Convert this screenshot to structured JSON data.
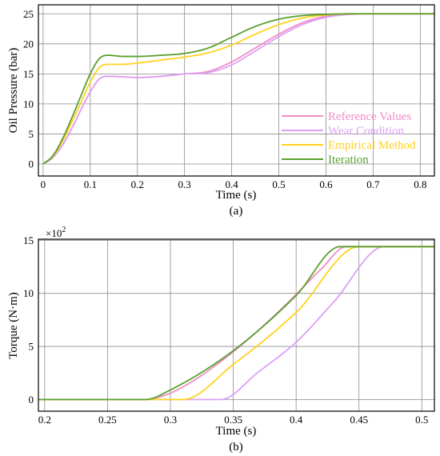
{
  "colors": {
    "reference": "#f08cc8",
    "wear": "#dca0f5",
    "empirical": "#ffd21e",
    "iteration": "#5aa02d"
  },
  "chart_data": [
    {
      "type": "line",
      "caption": "(a)",
      "xlabel": "Time (s)",
      "ylabel": "Oil Pressure (bar)",
      "xlim": [
        -0.01,
        0.83
      ],
      "ylim": [
        -2,
        26.5
      ],
      "xticks": [
        0,
        0.1,
        0.2,
        0.3,
        0.4,
        0.5,
        0.6,
        0.7,
        0.8
      ],
      "xtick_labels": [
        "0",
        "0.1",
        "0.2",
        "0.3",
        "0.4",
        "0.5",
        "0.6",
        "0.7",
        "0.8"
      ],
      "yticks": [
        0,
        5,
        10,
        15,
        20,
        25
      ],
      "ytick_labels": [
        "0",
        "5",
        "10",
        "15",
        "20",
        "25"
      ],
      "grid": true,
      "legend_position": "bottom-right",
      "series": [
        {
          "name": "Reference Values",
          "color_key": "reference",
          "x": [
            0,
            0.02,
            0.04,
            0.06,
            0.08,
            0.1,
            0.12,
            0.14,
            0.17,
            0.2,
            0.25,
            0.3,
            0.35,
            0.4,
            0.45,
            0.5,
            0.55,
            0.6,
            0.65,
            0.7,
            0.75,
            0.8,
            0.83
          ],
          "y": [
            0,
            1,
            3,
            5.8,
            9,
            12,
            14.2,
            14.6,
            14.5,
            14.4,
            14.6,
            15,
            15.4,
            17,
            19.3,
            21.6,
            23.5,
            24.6,
            24.9,
            25,
            25,
            25,
            25
          ]
        },
        {
          "name": "Wear Condition",
          "color_key": "wear",
          "x": [
            0,
            0.02,
            0.04,
            0.06,
            0.08,
            0.1,
            0.12,
            0.14,
            0.17,
            0.2,
            0.25,
            0.3,
            0.35,
            0.4,
            0.45,
            0.5,
            0.55,
            0.6,
            0.65,
            0.7,
            0.75,
            0.8,
            0.83
          ],
          "y": [
            0,
            1,
            3,
            5.8,
            9,
            12,
            14.2,
            14.6,
            14.5,
            14.4,
            14.6,
            15,
            15.2,
            16.5,
            18.8,
            21.2,
            23.2,
            24.4,
            24.9,
            25,
            25,
            25,
            25
          ]
        },
        {
          "name": "Empirical Method",
          "color_key": "empirical",
          "x": [
            0,
            0.02,
            0.04,
            0.06,
            0.08,
            0.1,
            0.12,
            0.14,
            0.17,
            0.2,
            0.25,
            0.3,
            0.35,
            0.4,
            0.45,
            0.5,
            0.55,
            0.6,
            0.65,
            0.7,
            0.75,
            0.8,
            0.83
          ],
          "y": [
            0,
            1.2,
            3.6,
            6.8,
            10.2,
            13.6,
            16.1,
            16.6,
            16.6,
            16.8,
            17.3,
            17.8,
            18.5,
            19.8,
            21.6,
            23.2,
            24.3,
            24.8,
            25,
            25,
            25,
            25,
            25
          ]
        },
        {
          "name": "Iteration",
          "color_key": "iteration",
          "x": [
            0,
            0.02,
            0.04,
            0.06,
            0.08,
            0.1,
            0.12,
            0.14,
            0.17,
            0.2,
            0.25,
            0.3,
            0.35,
            0.4,
            0.45,
            0.5,
            0.55,
            0.6,
            0.65,
            0.7,
            0.75,
            0.8,
            0.83
          ],
          "y": [
            0,
            1.3,
            4,
            7.5,
            11.3,
            15,
            17.6,
            18.1,
            17.9,
            17.9,
            18.1,
            18.4,
            19.3,
            21.1,
            22.9,
            24.1,
            24.7,
            24.9,
            25,
            25,
            25,
            25,
            25
          ]
        }
      ]
    },
    {
      "type": "line",
      "caption": "(b)",
      "xlabel": "Time (s)",
      "ylabel": "Torque (N·m)",
      "y_multiplier": "×10",
      "y_multiplier_exp": "2",
      "xlim": [
        0.195,
        0.51
      ],
      "ylim": [
        -1.1,
        15.1
      ],
      "xticks": [
        0.2,
        0.25,
        0.3,
        0.35,
        0.4,
        0.45,
        0.5
      ],
      "xtick_labels": [
        "0.2",
        "0.25",
        "0.3",
        "0.35",
        "0.4",
        "0.45",
        "0.5"
      ],
      "yticks": [
        0,
        5,
        10,
        15
      ],
      "ytick_labels": [
        "0",
        "5",
        "10",
        "15"
      ],
      "grid": true,
      "series": [
        {
          "name": "Reference Values",
          "color_key": "reference",
          "x": [
            0.195,
            0.28,
            0.29,
            0.3,
            0.32,
            0.35,
            0.38,
            0.4,
            0.42,
            0.44,
            0.51
          ],
          "y": [
            0,
            0,
            0.2,
            0.6,
            1.9,
            4.5,
            7.6,
            9.9,
            12.3,
            14.4,
            14.4
          ]
        },
        {
          "name": "Wear Condition",
          "color_key": "wear",
          "x": [
            0.195,
            0.34,
            0.37,
            0.4,
            0.43,
            0.47,
            0.51
          ],
          "y": [
            0,
            0,
            2.6,
            5.4,
            9.2,
            14.4,
            14.4
          ]
        },
        {
          "name": "Empirical Method",
          "color_key": "empirical",
          "x": [
            0.195,
            0.31,
            0.35,
            0.4,
            0.45,
            0.51
          ],
          "y": [
            0,
            0,
            3.3,
            8.2,
            14.4,
            14.4
          ]
        },
        {
          "name": "Iteration",
          "color_key": "iteration",
          "x": [
            0.195,
            0.28,
            0.3,
            0.35,
            0.4,
            0.435,
            0.51
          ],
          "y": [
            0,
            0,
            0.9,
            4.6,
            9.8,
            14.4,
            14.4
          ]
        }
      ]
    }
  ]
}
